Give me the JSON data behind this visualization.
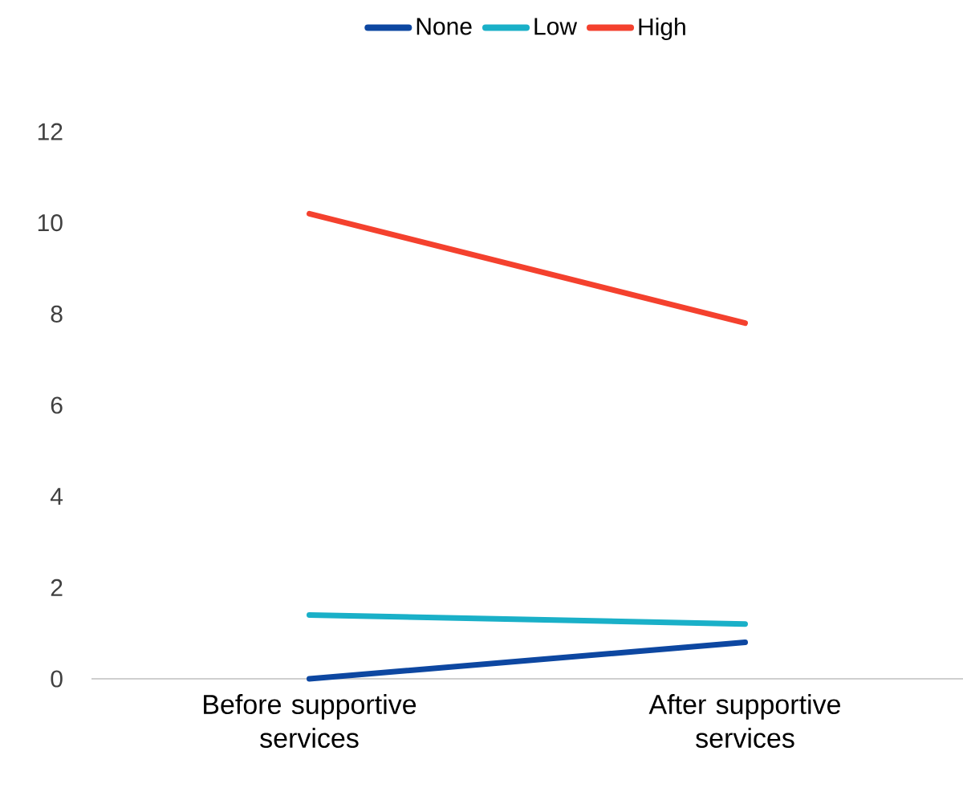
{
  "chart_data": {
    "type": "line",
    "categories": [
      "Before supportive services",
      "After supportive services"
    ],
    "series": [
      {
        "name": "None",
        "color": "#0d47a1",
        "values": [
          0,
          0.8
        ]
      },
      {
        "name": "Low",
        "color": "#1ab0c8",
        "values": [
          1.4,
          1.2
        ]
      },
      {
        "name": "High",
        "color": "#f4412e",
        "values": [
          10.2,
          7.8
        ]
      }
    ],
    "ylim": [
      0,
      12
    ],
    "yticks": [
      0,
      2,
      4,
      6,
      8,
      10,
      12
    ],
    "grid": false,
    "legend": "top",
    "marker": "none",
    "line_style": "solid"
  }
}
